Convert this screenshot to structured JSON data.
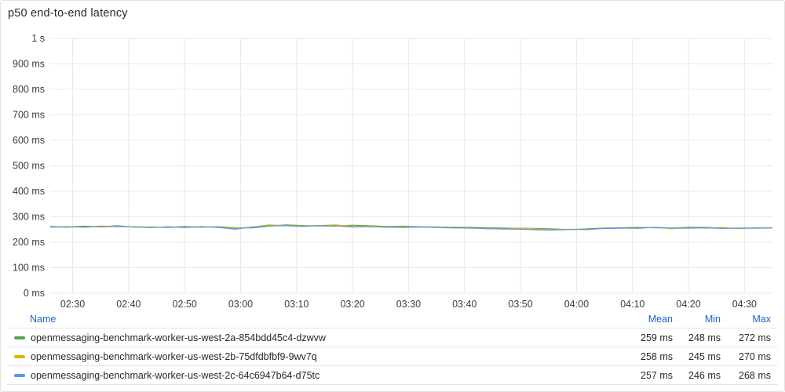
{
  "panel": {
    "title": "p50 end-to-end latency"
  },
  "legend": {
    "headers": {
      "name": "Name",
      "mean": "Mean",
      "min": "Min",
      "max": "Max"
    },
    "rows": [
      {
        "name": "openmessaging-benchmark-worker-us-west-2a-854bdd45c4-dzwvw",
        "mean": "259 ms",
        "min": "248 ms",
        "max": "272 ms",
        "color": "#56a64b"
      },
      {
        "name": "openmessaging-benchmark-worker-us-west-2b-75dfdbfbf9-9wv7q",
        "mean": "258 ms",
        "min": "245 ms",
        "max": "270 ms",
        "color": "#e0b400"
      },
      {
        "name": "openmessaging-benchmark-worker-us-west-2c-64c6947b64-d75tc",
        "mean": "257 ms",
        "min": "246 ms",
        "max": "268 ms",
        "color": "#5794f2"
      }
    ]
  },
  "chart_data": {
    "type": "line",
    "title": "p50 end-to-end latency",
    "xlabel": "",
    "ylabel": "",
    "x_ticks": [
      "02:30",
      "02:40",
      "02:50",
      "03:00",
      "03:10",
      "03:20",
      "03:30",
      "03:40",
      "03:50",
      "04:00",
      "04:10",
      "04:20",
      "04:30"
    ],
    "y_ticks": [
      "0 ms",
      "100 ms",
      "200 ms",
      "300 ms",
      "400 ms",
      "500 ms",
      "600 ms",
      "700 ms",
      "800 ms",
      "900 ms",
      "1 s"
    ],
    "x_range": [
      "02:26",
      "04:35"
    ],
    "ylim": [
      0,
      1000
    ],
    "y_unit": "ms",
    "grid": true,
    "legend_position": "bottom",
    "series": [
      {
        "name": "openmessaging-benchmark-worker-us-west-2a-854bdd45c4-dzwvw",
        "color": "#56a64b",
        "x": [
          "02:26",
          "02:29",
          "02:32",
          "02:35",
          "02:38",
          "02:41",
          "02:44",
          "02:47",
          "02:50",
          "02:53",
          "02:56",
          "02:59",
          "03:02",
          "03:05",
          "03:08",
          "03:11",
          "03:14",
          "03:17",
          "03:20",
          "03:23",
          "03:26",
          "03:29",
          "03:32",
          "03:35",
          "03:38",
          "03:41",
          "03:44",
          "03:47",
          "03:50",
          "03:53",
          "03:56",
          "03:59",
          "04:02",
          "04:05",
          "04:08",
          "04:11",
          "04:14",
          "04:17",
          "04:20",
          "04:23",
          "04:26",
          "04:29",
          "04:32",
          "04:35"
        ],
        "values": [
          262,
          260,
          263,
          261,
          265,
          259,
          260,
          258,
          262,
          259,
          261,
          257,
          256,
          263,
          268,
          266,
          264,
          263,
          267,
          265,
          262,
          263,
          261,
          260,
          259,
          258,
          257,
          256,
          255,
          254,
          252,
          250,
          253,
          256,
          257,
          258,
          257,
          255,
          259,
          258,
          256,
          255,
          256,
          257
        ]
      },
      {
        "name": "openmessaging-benchmark-worker-us-west-2b-75dfdbfbf9-9wv7q",
        "color": "#e0b400",
        "x": [
          "02:26",
          "02:29",
          "02:32",
          "02:35",
          "02:38",
          "02:41",
          "02:44",
          "02:47",
          "02:50",
          "02:53",
          "02:56",
          "02:59",
          "03:02",
          "03:05",
          "03:08",
          "03:11",
          "03:14",
          "03:17",
          "03:20",
          "03:23",
          "03:26",
          "03:29",
          "03:32",
          "03:35",
          "03:38",
          "03:41",
          "03:44",
          "03:47",
          "03:50",
          "03:53",
          "03:56",
          "03:59",
          "04:02",
          "04:05",
          "04:08",
          "04:11",
          "04:14",
          "04:17",
          "04:20",
          "04:23",
          "04:26",
          "04:29",
          "04:32",
          "04:35"
        ],
        "values": [
          259,
          262,
          258,
          264,
          262,
          260,
          257,
          261,
          259,
          262,
          258,
          255,
          258,
          268,
          266,
          264,
          266,
          268,
          262,
          264,
          260,
          261,
          259,
          261,
          257,
          255,
          254,
          253,
          256,
          252,
          250,
          251,
          249,
          255,
          256,
          254,
          259,
          253,
          257,
          255,
          258,
          253,
          257,
          256
        ]
      },
      {
        "name": "openmessaging-benchmark-worker-us-west-2c-64c6947b64-d75tc",
        "color": "#5794f2",
        "x": [
          "02:26",
          "02:29",
          "02:32",
          "02:35",
          "02:38",
          "02:41",
          "02:44",
          "02:47",
          "02:50",
          "02:53",
          "02:56",
          "02:59",
          "03:02",
          "03:05",
          "03:08",
          "03:11",
          "03:14",
          "03:17",
          "03:20",
          "03:23",
          "03:26",
          "03:29",
          "03:32",
          "03:35",
          "03:38",
          "03:41",
          "03:44",
          "03:47",
          "03:50",
          "03:53",
          "03:56",
          "03:59",
          "04:02",
          "04:05",
          "04:08",
          "04:11",
          "04:14",
          "04:17",
          "04:20",
          "04:23",
          "04:26",
          "04:29",
          "04:32",
          "04:35"
        ],
        "values": [
          260,
          259,
          261,
          260,
          262,
          261,
          259,
          260,
          258,
          260,
          259,
          251,
          260,
          264,
          265,
          262,
          265,
          264,
          260,
          261,
          259,
          258,
          260,
          258,
          256,
          257,
          253,
          252,
          251,
          249,
          248,
          250,
          252,
          254,
          255,
          256,
          258,
          256,
          255,
          257,
          254,
          256,
          255,
          256
        ]
      }
    ]
  }
}
